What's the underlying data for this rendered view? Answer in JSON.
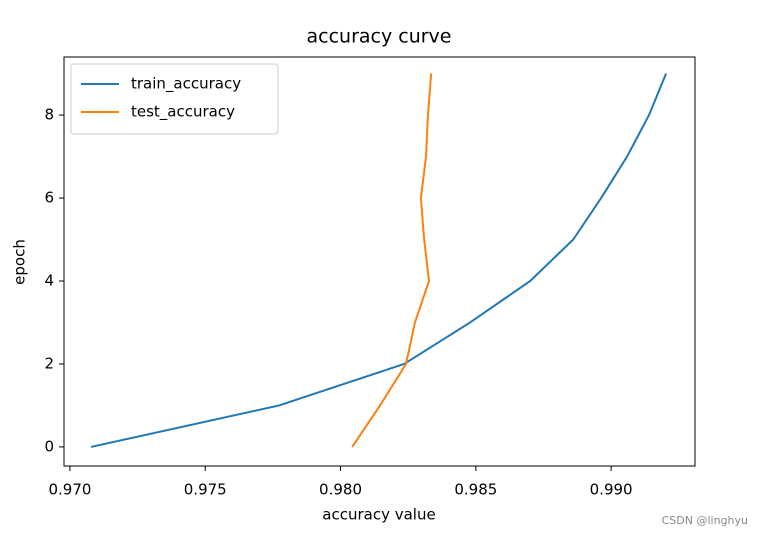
{
  "chart_data": {
    "type": "line",
    "title": "accuracy curve",
    "x_label": "accuracy value",
    "y_label": "epoch",
    "series": [
      {
        "name": "train_accuracy",
        "color": "#1f77b4",
        "x": [
          0.97078,
          0.97773,
          0.98235,
          0.98479,
          0.98701,
          0.9886,
          0.98963,
          0.99059,
          0.9914,
          0.99203
        ],
        "values": [
          0,
          1,
          2,
          3,
          4,
          5,
          6,
          7,
          8,
          9
        ]
      },
      {
        "name": "test_accuracy",
        "color": "#ff7f0e",
        "x": [
          0.98043,
          0.98146,
          0.98242,
          0.98275,
          0.98327,
          0.98309,
          0.98297,
          0.98316,
          0.98323,
          0.98335
        ],
        "values": [
          0,
          1,
          2,
          3,
          4,
          5,
          6,
          7,
          8,
          9
        ]
      }
    ],
    "xlim": [
      0.96978,
      0.9931
    ],
    "ylim": [
      -0.46,
      9.4
    ],
    "xticks": [
      {
        "value": 0.97,
        "label": "0.970"
      },
      0.975,
      {
        "value": 0.98,
        "label": "0.980"
      },
      0.985,
      {
        "value": 0.99,
        "label": "0.990"
      }
    ],
    "yticks": [
      0,
      2,
      4,
      6,
      8
    ],
    "legend": "upper left",
    "grid": false
  },
  "watermark": "CSDN @linghyu"
}
